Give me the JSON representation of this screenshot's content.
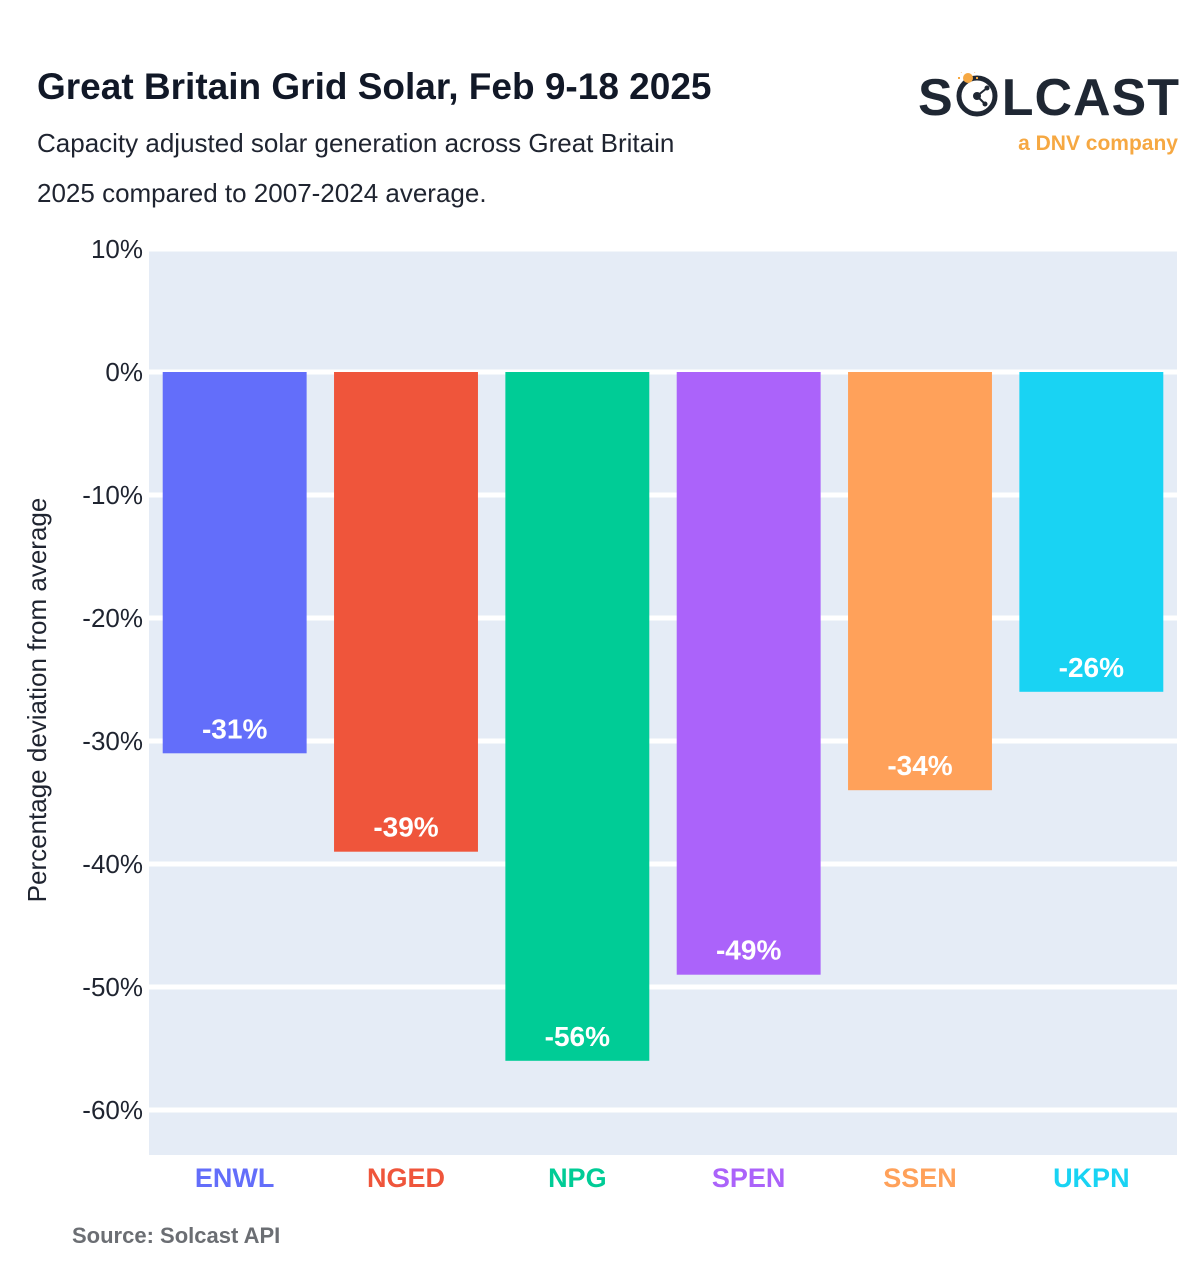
{
  "header": {
    "title": "Great Britain Grid Solar, Feb 9-18 2025",
    "subtitle_line1": "Capacity adjusted solar generation across Great Britain",
    "subtitle_line2": "2025 compared to 2007-2024 average."
  },
  "logo": {
    "word": "SOLCAST",
    "tagline": "a DNV company",
    "accent_color": "#f6a842",
    "text_color": "#1f2733"
  },
  "footer": {
    "source": "Source: Solcast API"
  },
  "chart_data": {
    "type": "bar",
    "title": "",
    "xlabel": "",
    "ylabel": "Percentage deviation from average",
    "categories": [
      "ENWL",
      "NGED",
      "NPG",
      "SPEN",
      "SSEN",
      "UKPN"
    ],
    "values": [
      -31,
      -39,
      -56,
      -49,
      -34,
      -26
    ],
    "data_labels": [
      "-31%",
      "-39%",
      "-56%",
      "-49%",
      "-34%",
      "-26%"
    ],
    "colors": [
      "#636efa",
      "#ef553b",
      "#00cc96",
      "#ab63fa",
      "#ffa15a",
      "#19d3f3"
    ],
    "yticks": [
      10,
      0,
      -10,
      -20,
      -30,
      -40,
      -50,
      -60
    ],
    "ytick_labels": [
      "10%",
      "0%",
      "-10%",
      "-20%",
      "-30%",
      "-40%",
      "-50%",
      "-60%"
    ],
    "ylim": [
      -64,
      10
    ],
    "grid": true,
    "background": "#e5ecf6",
    "legend": "none"
  }
}
